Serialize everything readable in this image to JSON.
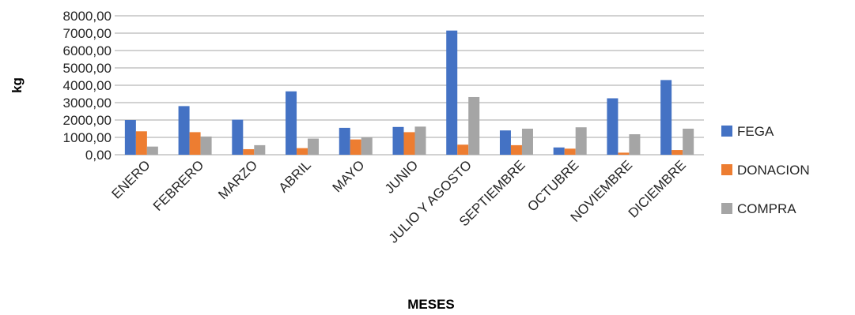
{
  "chart_data": {
    "type": "bar",
    "title": "",
    "xlabel": "MESES",
    "ylabel": "kg",
    "ylim": [
      0,
      8000
    ],
    "yticks": [
      0,
      1000,
      2000,
      3000,
      4000,
      5000,
      6000,
      7000,
      8000
    ],
    "ytick_labels": [
      "0,00",
      "1000,00",
      "2000,00",
      "3000,00",
      "4000,00",
      "5000,00",
      "6000,00",
      "7000,00",
      "8000,00"
    ],
    "grid": true,
    "legend_position": "right",
    "categories": [
      "ENERO",
      "FEBRERO",
      "MARZO",
      "ABRIL",
      "MAYO",
      "JUNIO",
      "JULIO Y AGOSTO",
      "SEPTIEMBRE",
      "OCTUBRE",
      "NOVIEMBRE",
      "DICIEMBRE"
    ],
    "series": [
      {
        "name": "FEGA",
        "color": "#4472C4",
        "values": [
          2000,
          2800,
          2020,
          3650,
          1550,
          1600,
          7150,
          1400,
          420,
          3250,
          4300
        ]
      },
      {
        "name": "DONACION",
        "color": "#ED7D31",
        "values": [
          1350,
          1300,
          320,
          380,
          880,
          1300,
          580,
          550,
          350,
          120,
          270
        ]
      },
      {
        "name": "COMPRA",
        "color": "#A5A5A5",
        "values": [
          470,
          1050,
          550,
          930,
          980,
          1620,
          3320,
          1500,
          1580,
          1180,
          1500
        ]
      }
    ]
  }
}
